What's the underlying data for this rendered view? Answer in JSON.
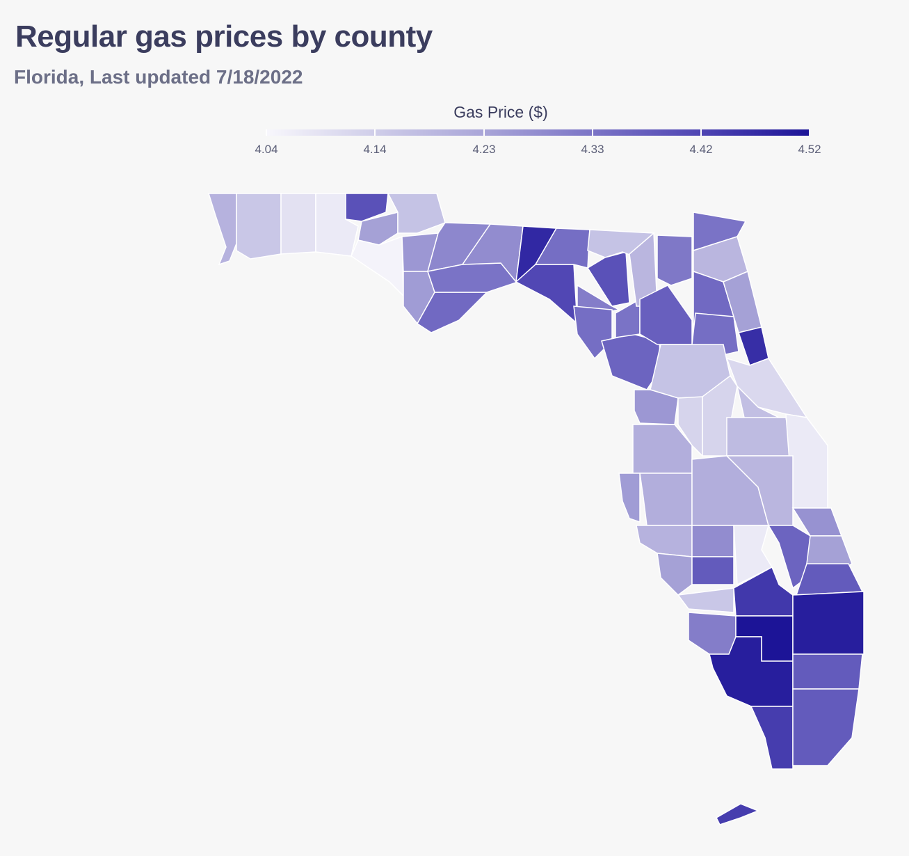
{
  "title": "Regular gas prices by county",
  "subtitle": "Florida, Last updated 7/18/2022",
  "chart_data": {
    "type": "choropleth",
    "title": "Regular gas prices by county",
    "subtitle": "Florida, Last updated 7/18/2022",
    "legend": {
      "title": "Gas Price ($)",
      "ticks": [
        "4.04",
        "4.14",
        "4.23",
        "4.33",
        "4.42",
        "4.52"
      ],
      "range": [
        4.04,
        4.52
      ],
      "colors": [
        "#f8f7fc",
        "#cfcde9",
        "#a9a5d8",
        "#7b74c6",
        "#4f45b3",
        "#1c1497"
      ],
      "placement": "top"
    },
    "region_values": [
      4.2,
      4.15,
      4.09,
      4.07,
      4.4,
      4.24,
      4.05,
      4.16,
      4.26,
      4.25,
      4.29,
      4.35,
      4.33,
      4.28,
      4.48,
      4.42,
      4.34,
      4.4,
      4.16,
      4.31,
      4.34,
      4.36,
      4.33,
      4.19,
      4.32,
      4.37,
      4.33,
      4.19,
      4.35,
      4.24,
      4.34,
      4.47,
      4.16,
      4.11,
      4.26,
      4.12,
      4.12,
      4.17,
      4.18,
      4.07,
      4.21,
      4.25,
      4.21,
      4.21,
      4.19,
      4.2,
      4.28,
      4.07,
      4.36,
      4.27,
      4.24,
      4.38,
      4.24,
      4.38,
      4.15,
      4.45,
      4.31,
      4.52,
      4.5,
      4.5,
      4.38,
      4.44,
      4.38,
      4.44
    ]
  }
}
